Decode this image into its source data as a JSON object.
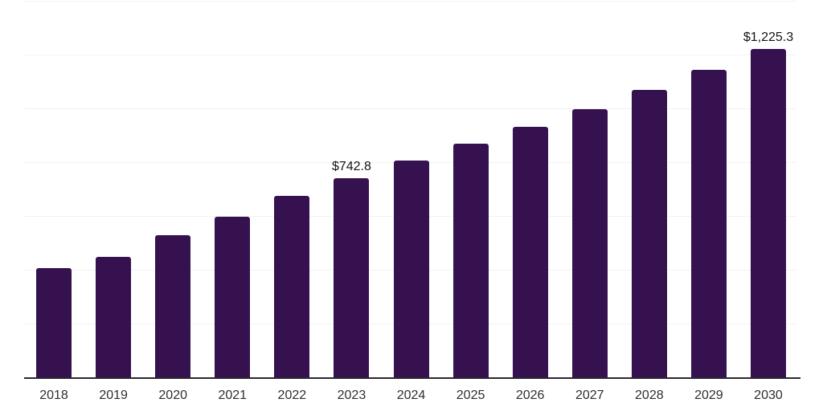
{
  "chart_data": {
    "type": "bar",
    "title": "",
    "xlabel": "",
    "ylabel": "",
    "categories": [
      "2018",
      "2019",
      "2020",
      "2021",
      "2022",
      "2023",
      "2024",
      "2025",
      "2026",
      "2027",
      "2028",
      "2029",
      "2030"
    ],
    "values": [
      410,
      451,
      530,
      601,
      677,
      742.8,
      808,
      872,
      935,
      1000,
      1072,
      1147,
      1225.3
    ],
    "point_labels": [
      "",
      "",
      "",
      "",
      "",
      "$742.8",
      "",
      "",
      "",
      "",
      "",
      "",
      "$1,225.3"
    ],
    "ylim": [
      0,
      1400
    ],
    "gridline_step": 200,
    "grid": true,
    "legend_position": "none",
    "y_tick_labels_visible": false,
    "colors": {
      "bar": "#361150",
      "axis": "#2b2830",
      "gridline": "#f2f2f4",
      "tick_label": "#2e2e2e",
      "value_label": "#141414",
      "background": "#ffffff"
    }
  }
}
